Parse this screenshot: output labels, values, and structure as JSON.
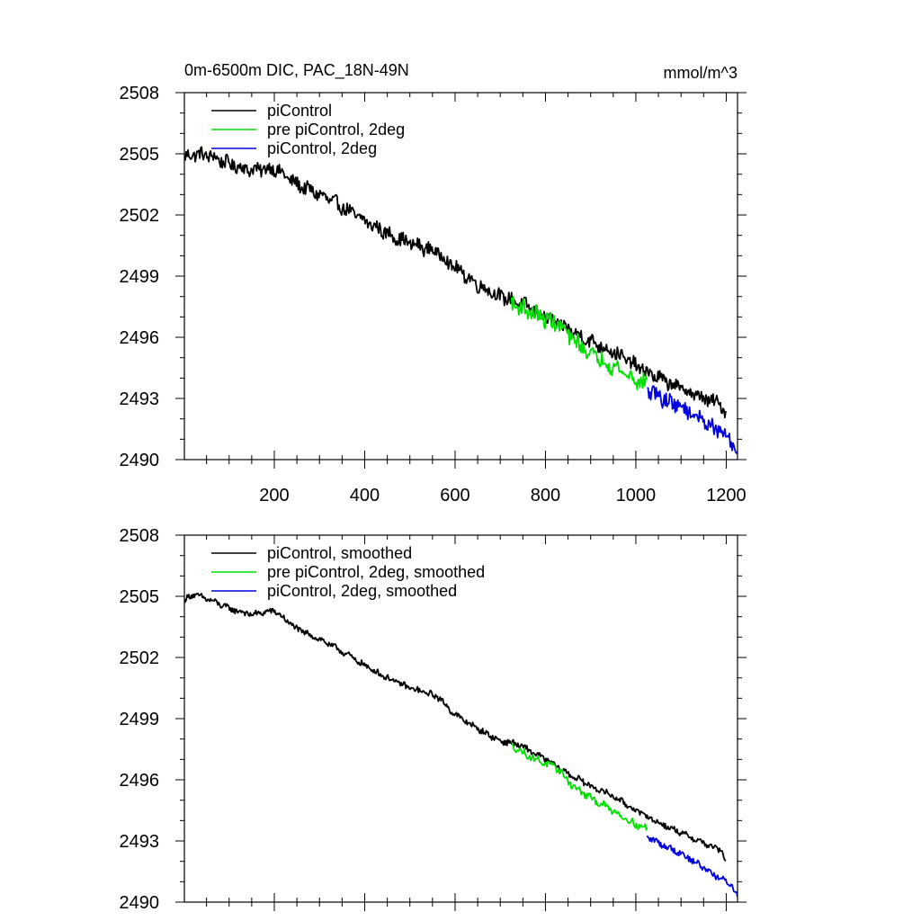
{
  "figure": {
    "title_left": "0m-6500m DIC, PAC_18N-49N",
    "title_right": "mmol/m^3"
  },
  "chart_data": [
    {
      "type": "line",
      "panel": "top",
      "title": "0m-6500m DIC, PAC_18N-49N",
      "units": "mmol/m^3",
      "xlim": [
        1,
        1225
      ],
      "ylim": [
        2490,
        2508
      ],
      "xticks": [
        200,
        400,
        600,
        800,
        1000,
        1200
      ],
      "xtick_labels": [
        "200",
        "400",
        "600",
        "800",
        "1000",
        "1200"
      ],
      "yticks": [
        2490,
        2493,
        2496,
        2499,
        2502,
        2505,
        2508
      ],
      "ytick_labels": [
        "2490",
        "2493",
        "2496",
        "2499",
        "2502",
        "2505",
        "2508"
      ],
      "legend_position": "top-left",
      "series": [
        {
          "name": "piControl",
          "color": "#000000",
          "noise": 0.32,
          "points": [
            [
              1,
              2504.8
            ],
            [
              20,
              2505.0
            ],
            [
              60,
              2504.9
            ],
            [
              100,
              2504.5
            ],
            [
              150,
              2504.2
            ],
            [
              200,
              2504.3
            ],
            [
              250,
              2503.5
            ],
            [
              300,
              2503.0
            ],
            [
              350,
              2502.4
            ],
            [
              400,
              2501.7
            ],
            [
              450,
              2501.1
            ],
            [
              500,
              2500.6
            ],
            [
              560,
              2500.2
            ],
            [
              600,
              2499.4
            ],
            [
              650,
              2498.6
            ],
            [
              700,
              2498.0
            ],
            [
              730,
              2497.8
            ],
            [
              760,
              2497.5
            ],
            [
              800,
              2497.0
            ],
            [
              850,
              2496.4
            ],
            [
              900,
              2495.8
            ],
            [
              950,
              2495.3
            ],
            [
              1000,
              2494.6
            ],
            [
              1050,
              2494.0
            ],
            [
              1100,
              2493.5
            ],
            [
              1150,
              2493.0
            ],
            [
              1190,
              2492.7
            ],
            [
              1200,
              2492.2
            ]
          ]
        },
        {
          "name": "pre piControl, 2deg",
          "color": "#00e000",
          "noise": 0.38,
          "points": [
            [
              725,
              2497.7
            ],
            [
              760,
              2497.3
            ],
            [
              800,
              2496.9
            ],
            [
              830,
              2496.6
            ],
            [
              860,
              2495.9
            ],
            [
              900,
              2495.2
            ],
            [
              950,
              2494.6
            ],
            [
              1000,
              2493.9
            ],
            [
              1025,
              2493.7
            ]
          ]
        },
        {
          "name": "piControl, 2deg",
          "color": "#0000e0",
          "noise": 0.36,
          "points": [
            [
              1025,
              2493.4
            ],
            [
              1060,
              2493.0
            ],
            [
              1100,
              2492.6
            ],
            [
              1150,
              2491.9
            ],
            [
              1190,
              2491.3
            ],
            [
              1210,
              2491.0
            ],
            [
              1225,
              2490.2
            ]
          ]
        }
      ]
    },
    {
      "type": "line",
      "panel": "bottom",
      "title": "",
      "units": "mmol/m^3",
      "xlim": [
        1,
        1225
      ],
      "ylim": [
        2490,
        2508
      ],
      "xticks": [
        200,
        400,
        600,
        800,
        1000,
        1200
      ],
      "yticks": [
        2490,
        2493,
        2496,
        2499,
        2502,
        2505,
        2508
      ],
      "ytick_labels": [
        "2490",
        "2493",
        "2496",
        "2499",
        "2502",
        "2505",
        "2508"
      ],
      "legend_position": "top-left",
      "series": [
        {
          "name": "piControl, smoothed",
          "color": "#000000",
          "noise": 0.14,
          "points": [
            [
              1,
              2504.8
            ],
            [
              20,
              2505.1
            ],
            [
              60,
              2504.8
            ],
            [
              100,
              2504.4
            ],
            [
              150,
              2504.1
            ],
            [
              200,
              2504.3
            ],
            [
              250,
              2503.4
            ],
            [
              300,
              2502.9
            ],
            [
              350,
              2502.3
            ],
            [
              400,
              2501.6
            ],
            [
              450,
              2501.0
            ],
            [
              500,
              2500.5
            ],
            [
              560,
              2500.1
            ],
            [
              600,
              2499.2
            ],
            [
              650,
              2498.5
            ],
            [
              700,
              2497.9
            ],
            [
              730,
              2497.8
            ],
            [
              760,
              2497.5
            ],
            [
              800,
              2497.0
            ],
            [
              850,
              2496.3
            ],
            [
              900,
              2495.7
            ],
            [
              950,
              2495.2
            ],
            [
              1000,
              2494.5
            ],
            [
              1050,
              2493.9
            ],
            [
              1100,
              2493.4
            ],
            [
              1150,
              2492.9
            ],
            [
              1190,
              2492.5
            ],
            [
              1200,
              2492.0
            ]
          ]
        },
        {
          "name": "pre piControl, 2deg, smoothed",
          "color": "#00e000",
          "noise": 0.16,
          "points": [
            [
              725,
              2497.7
            ],
            [
              760,
              2497.2
            ],
            [
              800,
              2496.8
            ],
            [
              830,
              2496.5
            ],
            [
              860,
              2495.7
            ],
            [
              900,
              2495.1
            ],
            [
              950,
              2494.5
            ],
            [
              1000,
              2493.8
            ],
            [
              1025,
              2493.6
            ]
          ]
        },
        {
          "name": "piControl, 2deg, smoothed",
          "color": "#0000e0",
          "noise": 0.15,
          "points": [
            [
              1025,
              2493.2
            ],
            [
              1060,
              2492.8
            ],
            [
              1100,
              2492.4
            ],
            [
              1150,
              2491.7
            ],
            [
              1190,
              2491.1
            ],
            [
              1210,
              2490.9
            ],
            [
              1225,
              2490.3
            ]
          ]
        }
      ]
    }
  ]
}
